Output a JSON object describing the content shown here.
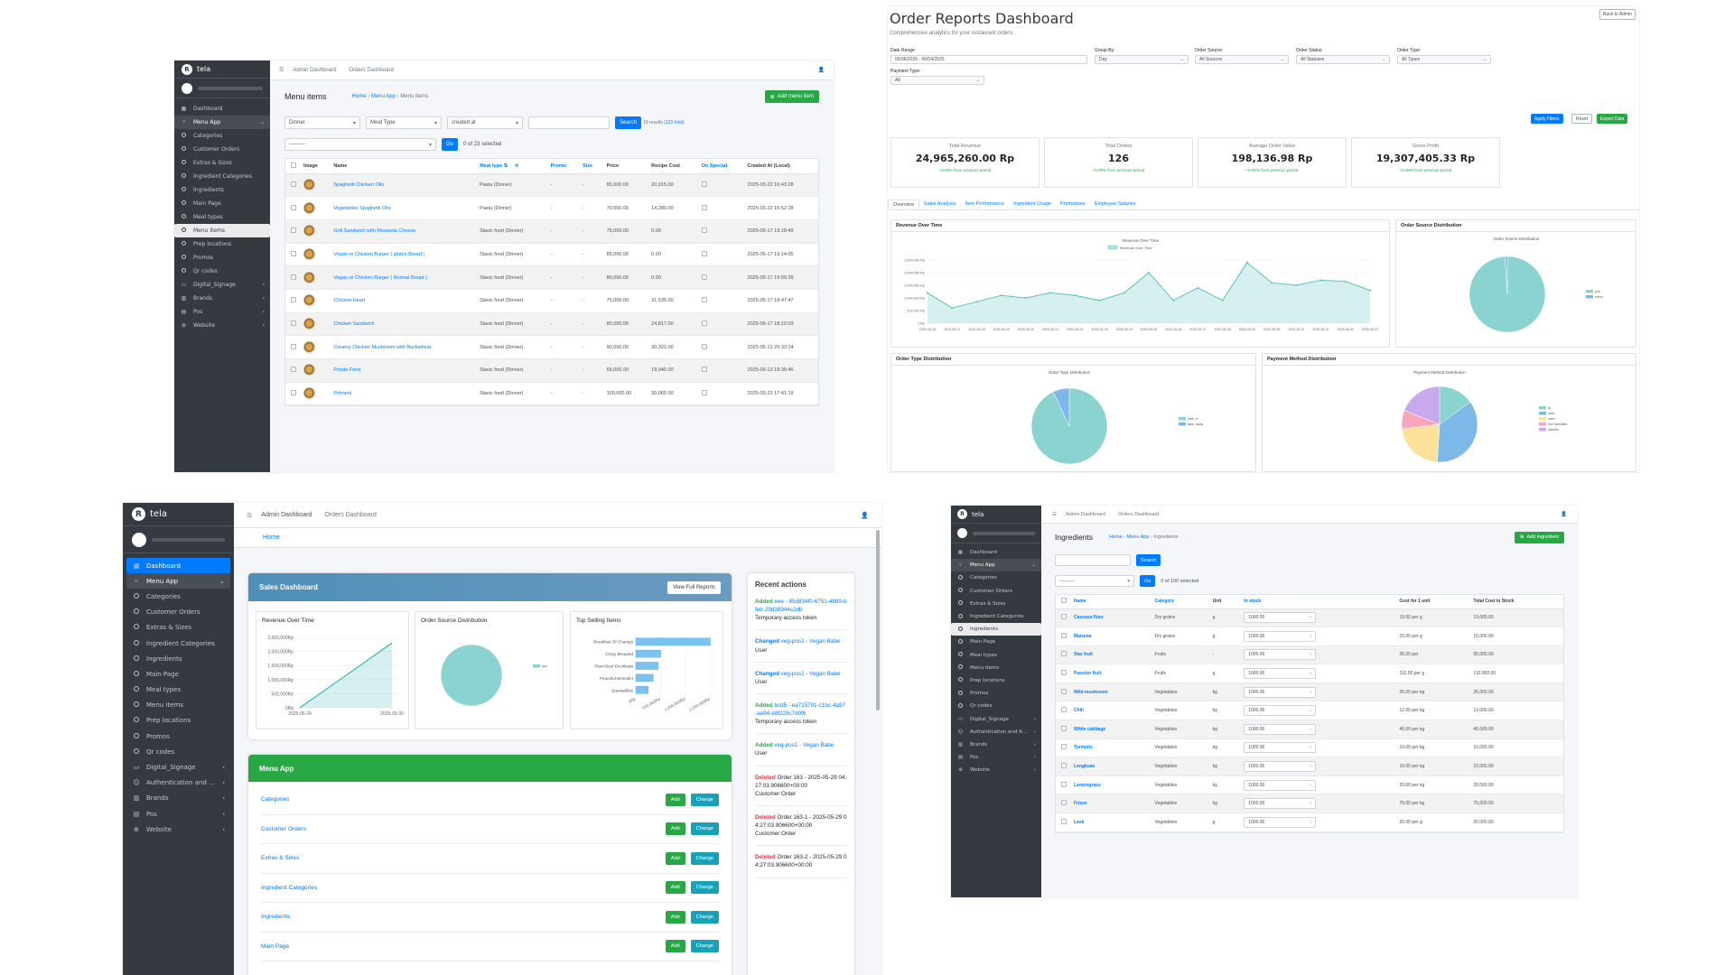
{
  "colors": {
    "sidebar": "#343a40",
    "primary": "#007bff",
    "success": "#28a745",
    "info": "#17a2b8",
    "teal": "#8ad3d1",
    "danger": "#dc3545"
  },
  "p1": {
    "brand": "tela",
    "sidebar": [
      {
        "label": "Dashboard",
        "icon": "dashboard-icon"
      },
      {
        "label": "Menu App",
        "icon": "utensils-icon",
        "open": true
      },
      {
        "label": "Categories"
      },
      {
        "label": "Customer Orders"
      },
      {
        "label": "Extras & Sizes"
      },
      {
        "label": "Ingredient Categories"
      },
      {
        "label": "Ingredients"
      },
      {
        "label": "Main Page"
      },
      {
        "label": "Meal types"
      },
      {
        "label": "Menu items",
        "selected": true
      },
      {
        "label": "Prep locations"
      },
      {
        "label": "Promos"
      },
      {
        "label": "Qr codes"
      },
      {
        "label": "Digital_Signage",
        "icon": "display-icon",
        "chev": true
      },
      {
        "label": "Brands",
        "icon": "building-icon",
        "chev": true
      },
      {
        "label": "Pos",
        "icon": "cash-register-icon",
        "chev": true
      },
      {
        "label": "Website",
        "icon": "globe-icon",
        "chev": true
      }
    ],
    "nav": [
      "Admin Dashboard",
      "Orders Dashboard"
    ],
    "title": "Menu items",
    "breadcrumb": [
      "Home",
      "Menu App",
      "Menu items"
    ],
    "add_label": "Add menu item",
    "filters": [
      "Dinner",
      "Meal Type",
      "created at"
    ],
    "search_label": "Search",
    "results": "10 results (",
    "results_total": "123 total",
    "results_end": ")",
    "action_placeholder": "---------",
    "go": "Go",
    "selected": "0 of 23 selected",
    "columns": [
      "Image",
      "Name",
      "Meal type",
      "Promo",
      "Size",
      "Price",
      "Recipe Cost",
      "On Special",
      "Created At (Local)"
    ],
    "rows": [
      [
        "Spaghetti Chicken Olio",
        "Pasta (Dinner)",
        "-",
        "-",
        "85,000.00",
        "20,915.00",
        "2025-03-22 16:43:28"
      ],
      [
        "Vegetables Spaghetti Olio",
        "Pasta (Dinner)",
        "-",
        "-",
        "70,000.00",
        "14,280.00",
        "2025-03-22 15:52:28"
      ],
      [
        "Grill Sandwich with Mozarela Cheese",
        "Slavic food (Dinner)",
        "-",
        "-",
        "75,000.00",
        "0.00",
        "2025-05-17 19:18:49"
      ],
      [
        "Vegan or Chicken Burger ( gluten Bread )",
        "Slavic food (Dinner)",
        "-",
        "-",
        "85,000.00",
        "0.00",
        "2025-05-17 19:14:05"
      ],
      [
        "Vegan or Chicken Burger ( Normal Bread )",
        "Slavic food (Dinner)",
        "-",
        "-",
        "80,000.00",
        "0.00",
        "2025-05-17 19:09:39"
      ],
      [
        "Chicken Heart",
        "Slavic food (Dinner)",
        "-",
        "-",
        "75,000.00",
        "31,535.00",
        "2025-05-17 18:47:47"
      ],
      [
        "Chicken Sandwich",
        "Slavic food (Dinner)",
        "-",
        "-",
        "80,000.00",
        "24,817.00",
        "2025-05-17 18:10:03"
      ],
      [
        "Creamy Chicken Mushroom with Buckwheat",
        "Slavic food (Dinner)",
        "-",
        "-",
        "90,000.00",
        "30,322.00",
        "2025-05-13 20:33:24"
      ],
      [
        "Potato Fried",
        "Slavic food (Dinner)",
        "-",
        "-",
        "65,000.00",
        "19,940.00",
        "2025-05-13 19:35:46"
      ],
      [
        "Pelmeni",
        "Slavic food (Dinner)",
        "-",
        "-",
        "100,000.00",
        "30,065.00",
        "2025-03-22 17:41:19"
      ]
    ]
  },
  "p2": {
    "title": "Order Reports Dashboard",
    "subtitle": "Comprehensive analytics for your restaurant orders",
    "back": "Back to Admin",
    "filters": [
      {
        "label": "Date Range:",
        "value": "05/06/2025 - 06/04/2025"
      },
      {
        "label": "Group By:",
        "value": "Day"
      },
      {
        "label": "Order Source:",
        "value": "All Sources"
      },
      {
        "label": "Order Status:",
        "value": "All Statuses"
      },
      {
        "label": "Order Type:",
        "value": "All Types"
      },
      {
        "label": "Payment Type:",
        "value": "All"
      }
    ],
    "apply": "Apply Filters",
    "reset": "Reset",
    "export": "Export Data",
    "kpis": [
      {
        "title": "Total Revenue",
        "value": "24,965,260.00 Rp",
        "change": "+0.00% from previous period"
      },
      {
        "title": "Total Orders",
        "value": "126",
        "change": "+0.00% from previous period"
      },
      {
        "title": "Average Order Value",
        "value": "198,136.98 Rp",
        "change": "+0.00% from previous period"
      },
      {
        "title": "Gross Profit",
        "value": "19,307,405.33 Rp",
        "change": "+0.00% from previous period"
      }
    ],
    "tabs": [
      "Overview",
      "Sales Analysis",
      "Item Performance",
      "Ingredient Usage",
      "Promotions",
      "Employee Salaries"
    ],
    "rev_card": "Revenue Over Time",
    "rev_chart_title": "Revenue Over Time",
    "rev_legend": "Revenue Over Time",
    "src_card": "Order Source Distribution",
    "src_chart_title": "Order Source Distribution",
    "type_card": "Order Type Distribution",
    "type_chart_title": "Order Type Distribution",
    "pay_card": "Payment Method Distribution",
    "pay_chart_title": "Payment Method Distribution"
  },
  "p3": {
    "brand": "tela",
    "sidebar": [
      {
        "label": "Dashboard",
        "icon": "dashboard-icon",
        "blue": true
      },
      {
        "label": "Menu App",
        "icon": "utensils-icon",
        "open": true
      },
      {
        "label": "Categories"
      },
      {
        "label": "Customer Orders"
      },
      {
        "label": "Extras & Sizes"
      },
      {
        "label": "Ingredient Categories"
      },
      {
        "label": "Ingredients"
      },
      {
        "label": "Main Page"
      },
      {
        "label": "Meal types"
      },
      {
        "label": "Menu items"
      },
      {
        "label": "Prep locations"
      },
      {
        "label": "Promos"
      },
      {
        "label": "Qr codes"
      },
      {
        "label": "Digital_Signage",
        "icon": "display-icon",
        "chev": true
      },
      {
        "label": "Authentication and A...",
        "icon": "users-icon",
        "chev": true
      },
      {
        "label": "Brands",
        "icon": "building-icon",
        "chev": true
      },
      {
        "label": "Pos",
        "icon": "cash-register-icon",
        "chev": true
      },
      {
        "label": "Website",
        "icon": "globe-icon",
        "chev": true
      }
    ],
    "nav": [
      "Admin Dashboard",
      "Orders Dashboard"
    ],
    "home": "Home",
    "sales_title": "Sales Dashboard",
    "full_reports": "View Full Reports",
    "mini1": "Revenue Over Time",
    "mini2": "Order Source Distribution",
    "mini3": "Top Selling Items",
    "menu_app": "Menu App",
    "menu_rows": [
      "Categories",
      "Customer Orders",
      "Extras & Sizes",
      "Ingredient Categories",
      "Ingredients",
      "Main Page"
    ],
    "add": "Add",
    "change": "Change",
    "recent_title": "Recent actions",
    "recent": [
      {
        "verb": "Added",
        "obj": "eee - 85d834f0-6751-4889-bfeb-29d38944c2db",
        "sub": "Temporary access token"
      },
      {
        "verb": "Changed",
        "obj": "veg-pos1 - Vegan Babe",
        "sub": "User"
      },
      {
        "verb": "Changed",
        "obj": "veg-pos1 - Vegan Babe",
        "sub": "User"
      },
      {
        "verb": "Added",
        "obj": "test5 - ea715701-c1bc-4a97-ae94-e8f229c7d0f6",
        "sub": "Temporary access token"
      },
      {
        "verb": "Added",
        "obj": "veg-pos1 - Vegan Babe",
        "sub": "User"
      },
      {
        "verb": "Deleted",
        "obj": "Order 163 - 2025-05-29 04:27:03.906600+00:00",
        "sub": "Customer Order"
      },
      {
        "verb": "Deleted",
        "obj": "Order 163-1 - 2025-05-29 04:27:03.906600+00:00",
        "sub": "Customer Order"
      },
      {
        "verb": "Deleted",
        "obj": "Order 163-2 - 2025-05-29 04:27:03.906600+00:00",
        "sub": ""
      }
    ]
  },
  "p4": {
    "brand": "tela",
    "sidebar": [
      {
        "label": "Dashboard",
        "icon": "dashboard-icon"
      },
      {
        "label": "Menu App",
        "icon": "utensils-icon",
        "open": true
      },
      {
        "label": "Categories"
      },
      {
        "label": "Customer Orders"
      },
      {
        "label": "Extras & Sizes"
      },
      {
        "label": "Ingredient Categories"
      },
      {
        "label": "Ingredients",
        "selected": true
      },
      {
        "label": "Main Page"
      },
      {
        "label": "Meal types"
      },
      {
        "label": "Menu items"
      },
      {
        "label": "Prep locations"
      },
      {
        "label": "Promos"
      },
      {
        "label": "Qr codes"
      },
      {
        "label": "Digital_Signage",
        "icon": "display-icon",
        "chev": true
      },
      {
        "label": "Authentication and A...",
        "icon": "users-icon",
        "chev": true
      },
      {
        "label": "Brands",
        "icon": "building-icon",
        "chev": true
      },
      {
        "label": "Pos",
        "icon": "cash-register-icon",
        "chev": true
      },
      {
        "label": "Website",
        "icon": "globe-icon",
        "chev": true
      }
    ],
    "nav": [
      "Admin Dashboard",
      "Orders Dashboard"
    ],
    "title": "Ingredients",
    "breadcrumb": [
      "Home",
      "Menu App",
      "Ingredients"
    ],
    "add_label": "Add ingredient",
    "search_label": "Search",
    "action_placeholder": "---------",
    "go": "Go",
    "selected": "0 of 100 selected",
    "columns": [
      "Name",
      "Category",
      "Unit",
      "In stock",
      "Cost for 1 unit",
      "Total Cost in Stock"
    ],
    "rows": [
      [
        "Cassava flour",
        "Dry grains",
        "g",
        "1000.00",
        "19.00 per g",
        "19,000.00"
      ],
      [
        "Maizena",
        "Dry grains",
        "g",
        "1000.00",
        "15.00 per g",
        "15,000.00"
      ],
      [
        "Star fruit",
        "Fruits",
        "-",
        "1000.00",
        "35.00 per",
        "35,000.00"
      ],
      [
        "Passion fruit",
        "Fruits",
        "g",
        "1000.00",
        "110.00 per g",
        "110,000.00"
      ],
      [
        "Wild mushroom",
        "Vegetables",
        "kg",
        "1000.00",
        "25.00 per kg",
        "25,000.00"
      ],
      [
        "Chili",
        "Vegetables",
        "kg",
        "1000.00",
        "12.00 per kg",
        "12,000.00"
      ],
      [
        "White cabbage",
        "Vegetables",
        "kg",
        "1000.00",
        "45.00 per kg",
        "45,000.00"
      ],
      [
        "Turmeric",
        "Vegetables",
        "kg",
        "1000.00",
        "10.00 per kg",
        "10,000.00"
      ],
      [
        "Lengkuas",
        "Vegetables",
        "kg",
        "1000.00",
        "10.00 per kg",
        "10,000.00"
      ],
      [
        "Lemongrass",
        "Vegetables",
        "kg",
        "1000.00",
        "20.00 per kg",
        "20,000.00"
      ],
      [
        "Frisee",
        "Vegetables",
        "kg",
        "1000.00",
        "75.00 per kg",
        "75,000.00"
      ],
      [
        "Leek",
        "Vegetables",
        "g",
        "1000.00",
        "20.00 per g",
        "20,000.00"
      ]
    ]
  },
  "chart_data": [
    {
      "type": "line",
      "title": "Revenue Over Time",
      "legend": "Revenue Over Time",
      "legend_position": "top",
      "grid": true,
      "ylim": [
        0,
        2500000
      ],
      "yticks": [
        "0 Rp",
        "500,000 Rp",
        "1,000,000 Rp",
        "1,500,000 Rp",
        "2,000,000 Rp",
        "2,500,000 Rp"
      ],
      "x": [
        "2025-05-16",
        "2025-05-17",
        "2025-05-18",
        "2025-05-19",
        "2025-05-20",
        "2025-05-21",
        "2025-05-22",
        "2025-05-23",
        "2025-05-24",
        "2025-05-25",
        "2025-05-26",
        "2025-05-27",
        "2025-05-28",
        "2025-05-29",
        "2025-05-30",
        "2025-05-31",
        "2025-06-01",
        "2025-06-02",
        "2025-06-03"
      ],
      "values": [
        1200000,
        600000,
        850000,
        1100000,
        1000000,
        1200000,
        1100000,
        900000,
        1200000,
        2000000,
        900000,
        1400000,
        900000,
        2400000,
        1600000,
        1500000,
        1700000,
        1650000,
        1300000
      ]
    },
    {
      "type": "pie",
      "title": "Order Source Distribution",
      "labels": [
        "pos",
        "menu"
      ],
      "values": [
        99,
        1
      ],
      "colors": [
        "#8ad3d1",
        "#7cb9e8"
      ]
    },
    {
      "type": "pie",
      "title": "Order Type Distribution",
      "labels": [
        "dine_in",
        "take_away"
      ],
      "values": [
        93,
        7
      ],
      "colors": [
        "#8ad3d1",
        "#7cb9e8"
      ]
    },
    {
      "type": "pie",
      "title": "Payment Method Distribution",
      "labels": [
        "qr",
        "card",
        "cash",
        "Not Specified",
        "transfer"
      ],
      "values": [
        15,
        36,
        22,
        8,
        19
      ],
      "colors": [
        "#8ad3d1",
        "#7cb9e8",
        "#fbe19a",
        "#f7a6bc",
        "#c9a8ee"
      ]
    },
    {
      "type": "line",
      "title": "Revenue Over Time",
      "x": [
        "2025-05-29",
        "2025-05-30"
      ],
      "values": [
        0,
        2300000
      ],
      "ylim": [
        0,
        2500000
      ],
      "yticks": [
        "0Rp",
        "500,000Rp",
        "1,000,000Rp",
        "1,500,000Rp",
        "2,000,000Rp",
        "2,500,000Rp"
      ]
    },
    {
      "type": "pie",
      "title": "Order Source Distribution",
      "labels": [
        "pos"
      ],
      "values": [
        100
      ],
      "colors": [
        "#8ad3d1"
      ]
    },
    {
      "type": "bar",
      "title": "Top Selling Items",
      "orientation": "horizontal",
      "categories": [
        "Breakfast Of Champs",
        "Crazy Breaded",
        "Plant Beef Enchilada",
        "Peaceful  Benedict",
        "Quesadillas"
      ],
      "values": [
        1500000,
        500000,
        450000,
        350000,
        250000
      ],
      "xticks": [
        "0Rp",
        "500,000Rp",
        "1,000,000Rp",
        "1,500,000Rp"
      ],
      "xlim": [
        0,
        1600000
      ]
    }
  ]
}
